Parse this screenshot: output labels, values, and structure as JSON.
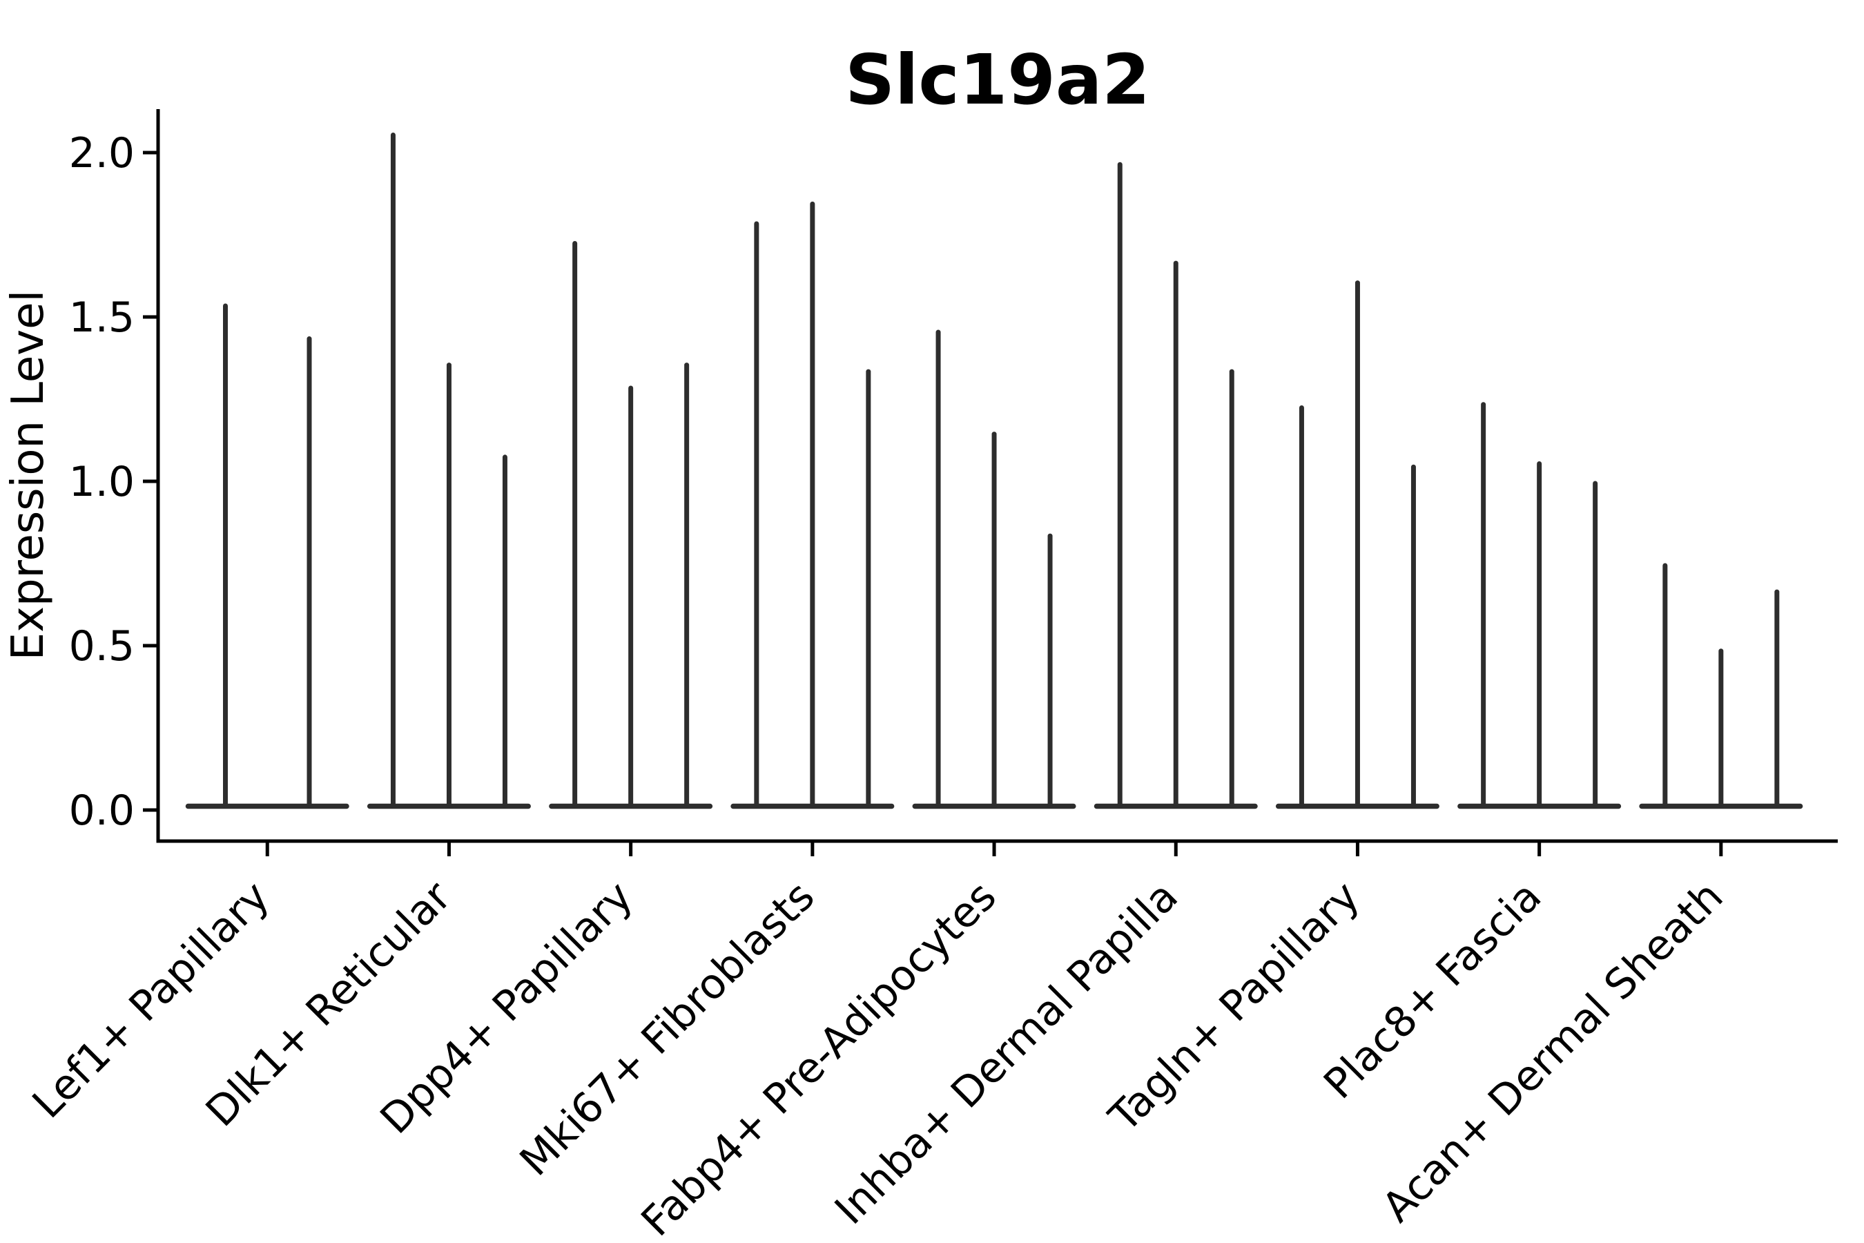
{
  "chart_data": {
    "type": "violin",
    "title": "Slc19a2",
    "xlabel": "",
    "ylabel": "Expression Level",
    "ylim": [
      -0.09,
      2.13
    ],
    "yticks": [
      "0.0",
      "0.5",
      "1.0",
      "1.5",
      "2.0"
    ],
    "grid": false,
    "legend": "none",
    "violin_color": "#2d2d2d",
    "axis_color": "#000000",
    "background_color": "#ffffff",
    "note": "Each violin is a spike shape: density bulk flattened at 0 (wide flat base) with a thin tail rising to the max expression value. Violins within a category share a merged base; first category has 2 violins, all others have 3.",
    "categories": [
      {
        "label": "Lef1+ Papillary",
        "violin_max_values": [
          1.54,
          1.44
        ]
      },
      {
        "label": "Dlk1+ Reticular",
        "violin_max_values": [
          2.06,
          1.36,
          1.08
        ]
      },
      {
        "label": "Dpp4+ Papillary",
        "violin_max_values": [
          1.73,
          1.29,
          1.36
        ]
      },
      {
        "label": "Mki67+ Fibroblasts",
        "violin_max_values": [
          1.79,
          1.85,
          1.34
        ]
      },
      {
        "label": "Fabp4+ Pre-Adipocytes",
        "violin_max_values": [
          1.46,
          1.15,
          0.84
        ]
      },
      {
        "label": "Inhba+ Dermal Papilla",
        "violin_max_values": [
          1.97,
          1.67,
          1.34
        ]
      },
      {
        "label": "Tagln+ Papillary",
        "violin_max_values": [
          1.23,
          1.61,
          1.05
        ]
      },
      {
        "label": "Plac8+ Fascia",
        "violin_max_values": [
          1.24,
          1.06,
          1.0
        ]
      },
      {
        "label": "Acan+ Dermal Sheath",
        "violin_max_values": [
          0.75,
          0.49,
          0.67
        ]
      }
    ]
  }
}
